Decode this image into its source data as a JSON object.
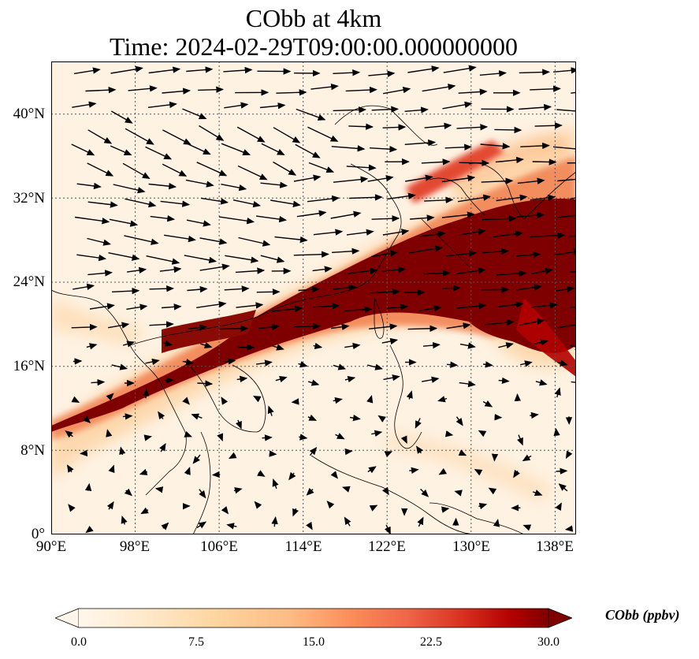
{
  "title": {
    "line1": "CObb at 4km",
    "line2": "Time: 2024-02-29T09:00:00.000000000"
  },
  "map": {
    "lon_range": [
      90,
      140
    ],
    "lat_range": [
      0,
      45
    ],
    "lon_ticks": [
      "90°E",
      "98°E",
      "106°E",
      "114°E",
      "122°E",
      "130°E",
      "138°E"
    ],
    "lat_ticks": [
      "0°",
      "8°N",
      "16°N",
      "24°N",
      "32°N",
      "40°N"
    ],
    "field_description": "biomass-burning CO plume from Indochina northeastward over East China Sea toward Japan and western Pacific",
    "vectors": "wind vectors (westerlies in north, weak variable winds in south)",
    "gridlines": "dotted"
  },
  "colorbar": {
    "label": "CObb (ppbv)",
    "min": 0.0,
    "max": 30.0,
    "ticks": [
      "0.0",
      "7.5",
      "15.0",
      "22.5",
      "30.0"
    ],
    "colormap": "OrRd",
    "colors": [
      "#fff7ec",
      "#fee8c8",
      "#fdd49e",
      "#fdbb84",
      "#fc8d59",
      "#ef6548",
      "#d7301f",
      "#b30000",
      "#7f0000"
    ]
  }
}
